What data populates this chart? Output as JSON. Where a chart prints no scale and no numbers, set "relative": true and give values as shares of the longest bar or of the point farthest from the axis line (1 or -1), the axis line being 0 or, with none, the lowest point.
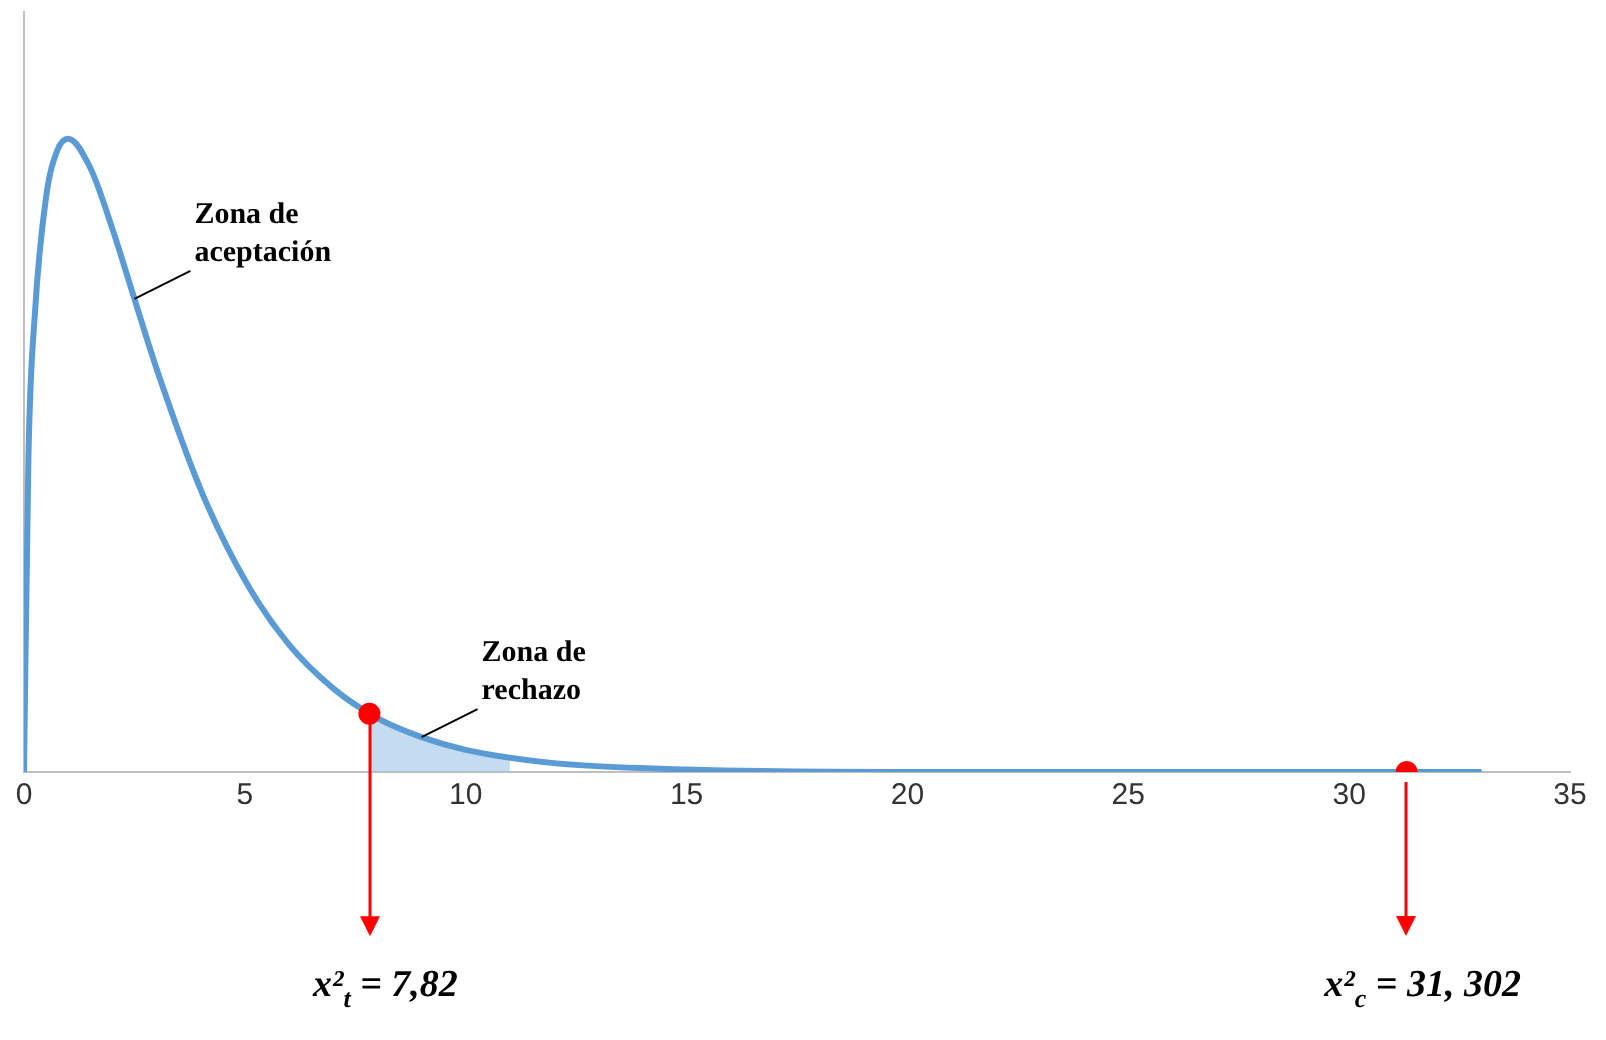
{
  "chart_data": {
    "type": "line",
    "relative": true,
    "xlim": [
      0,
      35
    ],
    "xticks": [
      0,
      5,
      10,
      15,
      20,
      25,
      30,
      35
    ],
    "grid": false,
    "legend": false,
    "series": [
      {
        "type": "line",
        "color": "#5b9bd5",
        "marker": "none",
        "x": [
          0,
          0.1,
          0.25,
          0.5,
          0.75,
          1,
          1.5,
          2,
          2.5,
          3,
          4,
          5,
          6,
          7,
          8,
          9,
          10,
          12,
          15,
          20,
          25,
          30,
          33
        ],
        "values": [
          0,
          0.496,
          0.727,
          0.908,
          0.981,
          1,
          0.954,
          0.858,
          0.747,
          0.637,
          0.446,
          0.303,
          0.201,
          0.132,
          0.085,
          0.055,
          0.035,
          0.014,
          0.004,
          0,
          0,
          0,
          0
        ]
      },
      {
        "type": "area",
        "color": "#9dc3e6",
        "marker": "none",
        "x": [
          7.82,
          9,
          10,
          11
        ],
        "values": [
          0.092,
          0.055,
          0.035,
          0.022
        ]
      },
      {
        "type": "scatter",
        "color": "#ff0000",
        "marker": "circle",
        "x": [
          7.82,
          31.302
        ],
        "values": [
          0.092,
          0
        ]
      }
    ],
    "annotations": [
      {
        "text": "Zona de aceptación",
        "x": 2.5,
        "y": 0.747
      },
      {
        "text": "Zona de rechazo",
        "x": 9,
        "y": 0.055
      },
      "x²$_{t}$ = 7,82",
      "x²$_{c}$ = 31, 302"
    ]
  }
}
